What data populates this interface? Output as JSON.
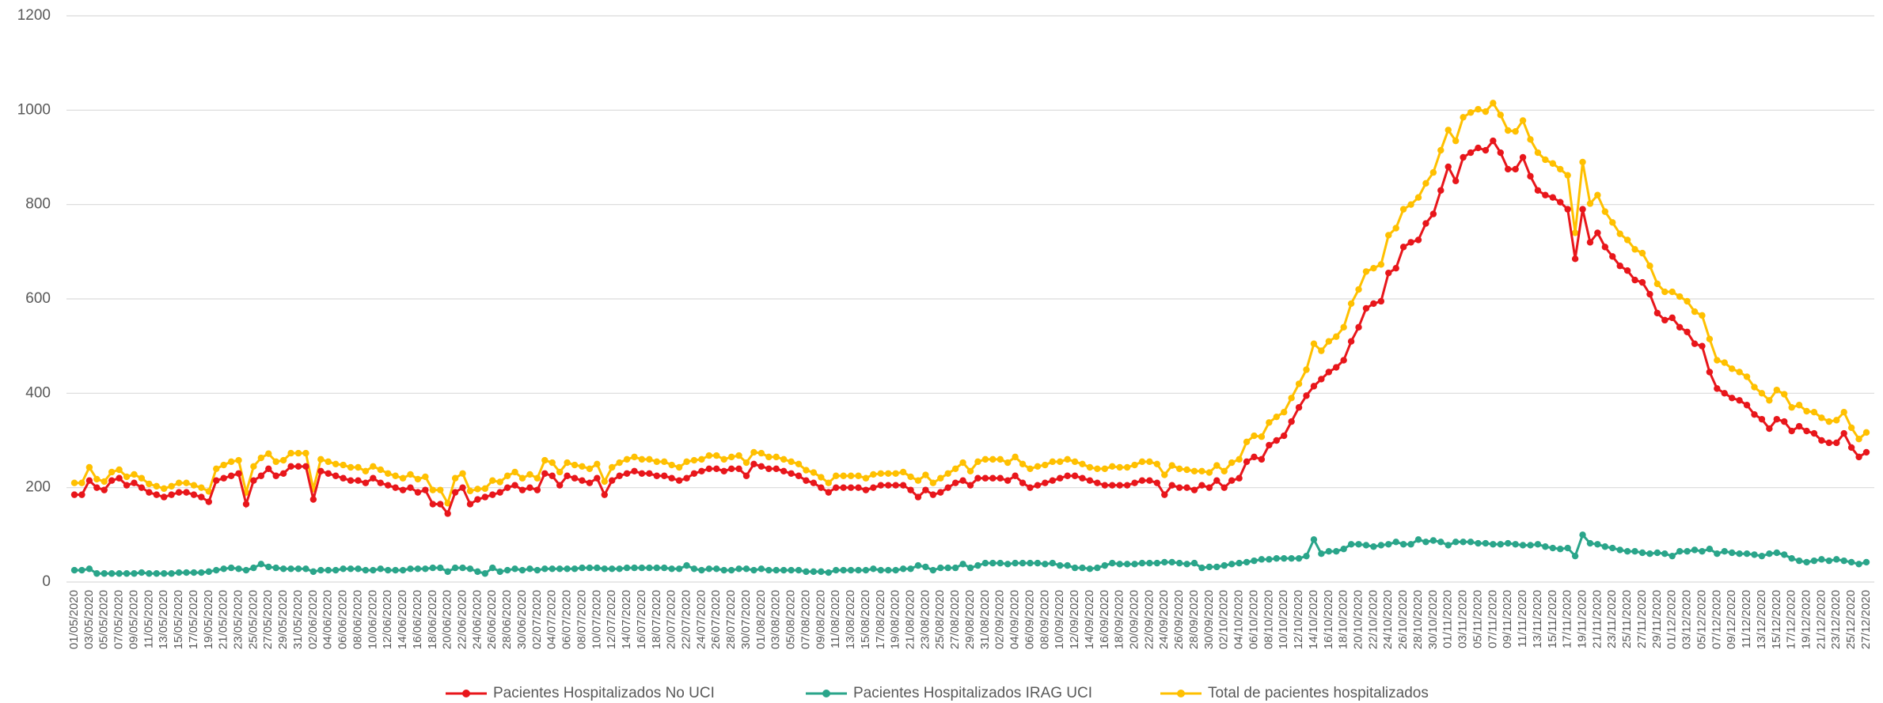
{
  "chart_data": {
    "type": "line",
    "categories": [
      "01/05/2020",
      null,
      "03/05/2020",
      null,
      "05/05/2020",
      null,
      "07/05/2020",
      null,
      "09/05/2020",
      null,
      "11/05/2020",
      null,
      "13/05/2020",
      null,
      "15/05/2020",
      null,
      "17/05/2020",
      null,
      "19/05/2020",
      null,
      "21/05/2020",
      null,
      "23/05/2020",
      null,
      "25/05/2020",
      null,
      "27/05/2020",
      null,
      "29/05/2020",
      null,
      "31/05/2020",
      null,
      "02/06/2020",
      null,
      "04/06/2020",
      null,
      "06/06/2020",
      null,
      "08/06/2020",
      null,
      "10/06/2020",
      null,
      "12/06/2020",
      null,
      "14/06/2020",
      null,
      "16/06/2020",
      null,
      "18/06/2020",
      null,
      "20/06/2020",
      null,
      "22/06/2020",
      null,
      "24/06/2020",
      null,
      "26/06/2020",
      null,
      "28/06/2020",
      null,
      "30/06/2020",
      null,
      "02/07/2020",
      null,
      "04/07/2020",
      null,
      "06/07/2020",
      null,
      "08/07/2020",
      null,
      "10/07/2020",
      null,
      "12/07/2020",
      null,
      "14/07/2020",
      null,
      "16/07/2020",
      null,
      "18/07/2020",
      null,
      "20/07/2020",
      null,
      "22/07/2020",
      null,
      "24/07/2020",
      null,
      "26/07/2020",
      null,
      "28/07/2020",
      null,
      "30/07/2020",
      null,
      "01/08/2020",
      null,
      "03/08/2020",
      null,
      "05/08/2020",
      null,
      "07/08/2020",
      null,
      "09/08/2020",
      null,
      "11/08/2020",
      null,
      "13/08/2020",
      null,
      "15/08/2020",
      null,
      "17/08/2020",
      null,
      "19/08/2020",
      null,
      "21/08/2020",
      null,
      "23/08/2020",
      null,
      "25/08/2020",
      null,
      "27/08/2020",
      null,
      "29/08/2020",
      null,
      "31/08/2020",
      null,
      "02/09/2020",
      null,
      "04/09/2020",
      null,
      "06/09/2020",
      null,
      "08/09/2020",
      null,
      "10/09/2020",
      null,
      "12/09/2020",
      null,
      "14/09/2020",
      null,
      "16/09/2020",
      null,
      "18/09/2020",
      null,
      "20/09/2020",
      null,
      "22/09/2020",
      null,
      "24/09/2020",
      null,
      "26/09/2020",
      null,
      "28/09/2020",
      null,
      "30/09/2020",
      null,
      "02/10/2020",
      null,
      "04/10/2020",
      null,
      "06/10/2020",
      null,
      "08/10/2020",
      null,
      "10/10/2020",
      null,
      "12/10/2020",
      null,
      "14/10/2020",
      null,
      "16/10/2020",
      null,
      "18/10/2020",
      null,
      "20/10/2020",
      null,
      "22/10/2020",
      null,
      "24/10/2020",
      null,
      "26/10/2020",
      null,
      "28/10/2020",
      null,
      "30/10/2020",
      null,
      "01/11/2020",
      null,
      "03/11/2020",
      null,
      "05/11/2020",
      null,
      "07/11/2020",
      null,
      "09/11/2020",
      null,
      "11/11/2020",
      null,
      "13/11/2020",
      null,
      "15/11/2020",
      null,
      "17/11/2020",
      null,
      "19/11/2020",
      null,
      "21/11/2020",
      null,
      "23/11/2020",
      null,
      "25/11/2020",
      null,
      "27/11/2020",
      null,
      "29/11/2020",
      null,
      "01/12/2020",
      null,
      "03/12/2020",
      null,
      "05/12/2020",
      null,
      "07/12/2020",
      null,
      "09/12/2020",
      null,
      "11/12/2020",
      null,
      "13/12/2020",
      null,
      "15/12/2020",
      null,
      "17/12/2020",
      null,
      "19/12/2020",
      null,
      "21/12/2020",
      null,
      "23/12/2020",
      null,
      "25/12/2020",
      null,
      "27/12/2020"
    ],
    "series": [
      {
        "name": "Pacientes Hospitalizados No UCI",
        "color": "#e8161b",
        "values": [
          185,
          185,
          215,
          200,
          195,
          215,
          220,
          205,
          210,
          200,
          190,
          185,
          180,
          185,
          190,
          190,
          185,
          180,
          170,
          215,
          220,
          225,
          230,
          165,
          215,
          225,
          240,
          225,
          230,
          245,
          245,
          245,
          175,
          235,
          230,
          225,
          220,
          215,
          215,
          210,
          220,
          210,
          205,
          200,
          195,
          200,
          190,
          195,
          165,
          165,
          145,
          190,
          200,
          165,
          175,
          180,
          185,
          190,
          200,
          205,
          195,
          200,
          195,
          230,
          225,
          205,
          225,
          220,
          215,
          210,
          220,
          185,
          215,
          225,
          230,
          235,
          230,
          230,
          225,
          225,
          220,
          215,
          220,
          230,
          235,
          240,
          240,
          235,
          240,
          240,
          225,
          250,
          245,
          240,
          240,
          235,
          230,
          225,
          215,
          210,
          200,
          190,
          200,
          200,
          200,
          200,
          195,
          200,
          205,
          205,
          205,
          205,
          195,
          180,
          195,
          185,
          190,
          200,
          210,
          215,
          205,
          220,
          220,
          220,
          220,
          215,
          225,
          210,
          200,
          205,
          210,
          215,
          220,
          225,
          225,
          220,
          215,
          210,
          205,
          205,
          205,
          205,
          210,
          215,
          215,
          210,
          185,
          205,
          200,
          200,
          195,
          205,
          200,
          215,
          200,
          215,
          220,
          255,
          265,
          260,
          290,
          300,
          310,
          340,
          370,
          395,
          415,
          430,
          445,
          455,
          470,
          510,
          540,
          580,
          590,
          595,
          655,
          665,
          710,
          720,
          725,
          760,
          780,
          830,
          880,
          850,
          900,
          910,
          920,
          915,
          935,
          910,
          875,
          875,
          900,
          860,
          830,
          820,
          815,
          805,
          790,
          685,
          790,
          720,
          740,
          710,
          690,
          670,
          660,
          640,
          635,
          610,
          570,
          555,
          560,
          540,
          530,
          505,
          500,
          445,
          410,
          400,
          390,
          385,
          375,
          355,
          345,
          325,
          345,
          340,
          320,
          330,
          320,
          315,
          300,
          295,
          295,
          315,
          285,
          265,
          275
        ]
      },
      {
        "name": "Pacientes Hospitalizados IRAG UCI",
        "color": "#2aa58a",
        "values": [
          25,
          25,
          28,
          18,
          18,
          18,
          18,
          18,
          18,
          20,
          18,
          18,
          18,
          18,
          20,
          20,
          20,
          20,
          22,
          25,
          28,
          30,
          28,
          25,
          30,
          38,
          32,
          30,
          28,
          28,
          28,
          28,
          22,
          25,
          25,
          25,
          28,
          28,
          28,
          25,
          25,
          28,
          25,
          25,
          25,
          28,
          28,
          28,
          30,
          30,
          22,
          30,
          30,
          28,
          22,
          18,
          30,
          22,
          25,
          28,
          25,
          28,
          25,
          28,
          28,
          28,
          28,
          28,
          30,
          30,
          30,
          28,
          28,
          28,
          30,
          30,
          30,
          30,
          30,
          30,
          28,
          28,
          35,
          28,
          25,
          28,
          28,
          25,
          25,
          28,
          28,
          25,
          28,
          25,
          25,
          25,
          25,
          25,
          22,
          22,
          22,
          20,
          25,
          25,
          25,
          25,
          25,
          28,
          25,
          25,
          25,
          28,
          28,
          35,
          32,
          25,
          30,
          30,
          30,
          38,
          30,
          35,
          40,
          40,
          40,
          38,
          40,
          40,
          40,
          40,
          38,
          40,
          35,
          35,
          30,
          30,
          28,
          30,
          35,
          40,
          38,
          38,
          38,
          40,
          40,
          40,
          42,
          42,
          40,
          38,
          40,
          30,
          32,
          32,
          35,
          38,
          40,
          42,
          45,
          48,
          48,
          50,
          50,
          50,
          50,
          55,
          90,
          60,
          65,
          65,
          70,
          80,
          80,
          78,
          75,
          78,
          80,
          85,
          80,
          80,
          90,
          85,
          88,
          85,
          78,
          85,
          85,
          85,
          82,
          82,
          80,
          80,
          82,
          80,
          78,
          78,
          80,
          75,
          72,
          70,
          72,
          55,
          100,
          82,
          80,
          75,
          72,
          68,
          65,
          65,
          62,
          60,
          62,
          60,
          55,
          65,
          65,
          68,
          65,
          70,
          60,
          65,
          62,
          60,
          60,
          58,
          55,
          60,
          62,
          58,
          50,
          45,
          42,
          45,
          48,
          45,
          48,
          45,
          42,
          38,
          42
        ]
      },
      {
        "name": "Total de pacientes hospitalizados",
        "color": "#ffc000",
        "values": [
          210,
          210,
          243,
          218,
          213,
          233,
          238,
          223,
          228,
          220,
          208,
          203,
          198,
          203,
          210,
          210,
          205,
          200,
          192,
          240,
          248,
          255,
          258,
          190,
          245,
          263,
          272,
          255,
          258,
          273,
          273,
          273,
          197,
          260,
          255,
          250,
          248,
          243,
          243,
          235,
          245,
          238,
          230,
          225,
          220,
          228,
          218,
          223,
          195,
          195,
          167,
          220,
          230,
          193,
          197,
          198,
          215,
          212,
          225,
          233,
          220,
          228,
          220,
          258,
          253,
          233,
          253,
          248,
          245,
          240,
          250,
          213,
          243,
          253,
          260,
          265,
          260,
          260,
          255,
          255,
          248,
          243,
          255,
          258,
          260,
          268,
          268,
          260,
          265,
          268,
          253,
          275,
          273,
          265,
          265,
          260,
          255,
          250,
          237,
          232,
          222,
          210,
          225,
          225,
          225,
          225,
          220,
          228,
          230,
          230,
          230,
          233,
          223,
          215,
          227,
          210,
          220,
          230,
          240,
          253,
          235,
          255,
          260,
          260,
          260,
          253,
          265,
          250,
          240,
          245,
          248,
          255,
          255,
          260,
          255,
          250,
          243,
          240,
          240,
          245,
          243,
          243,
          248,
          255,
          255,
          250,
          227,
          247,
          240,
          238,
          235,
          235,
          232,
          247,
          235,
          253,
          260,
          297,
          310,
          308,
          338,
          350,
          360,
          390,
          420,
          450,
          505,
          490,
          510,
          520,
          540,
          590,
          620,
          658,
          665,
          673,
          735,
          750,
          790,
          800,
          815,
          845,
          868,
          915,
          958,
          935,
          985,
          995,
          1002,
          997,
          1015,
          990,
          957,
          955,
          978,
          938,
          910,
          895,
          887,
          875,
          862,
          740,
          890,
          802,
          820,
          785,
          762,
          738,
          725,
          705,
          697,
          670,
          632,
          615,
          615,
          605,
          595,
          573,
          565,
          515,
          470,
          465,
          452,
          445,
          435,
          413,
          400,
          385,
          407,
          398,
          370,
          375,
          362,
          360,
          348,
          340,
          343,
          360,
          327,
          303,
          317
        ]
      }
    ],
    "ylim": [
      0,
      1200
    ],
    "yticks": [
      0,
      200,
      400,
      600,
      800,
      1000,
      1200
    ],
    "grid": true,
    "legend": "bottom"
  }
}
